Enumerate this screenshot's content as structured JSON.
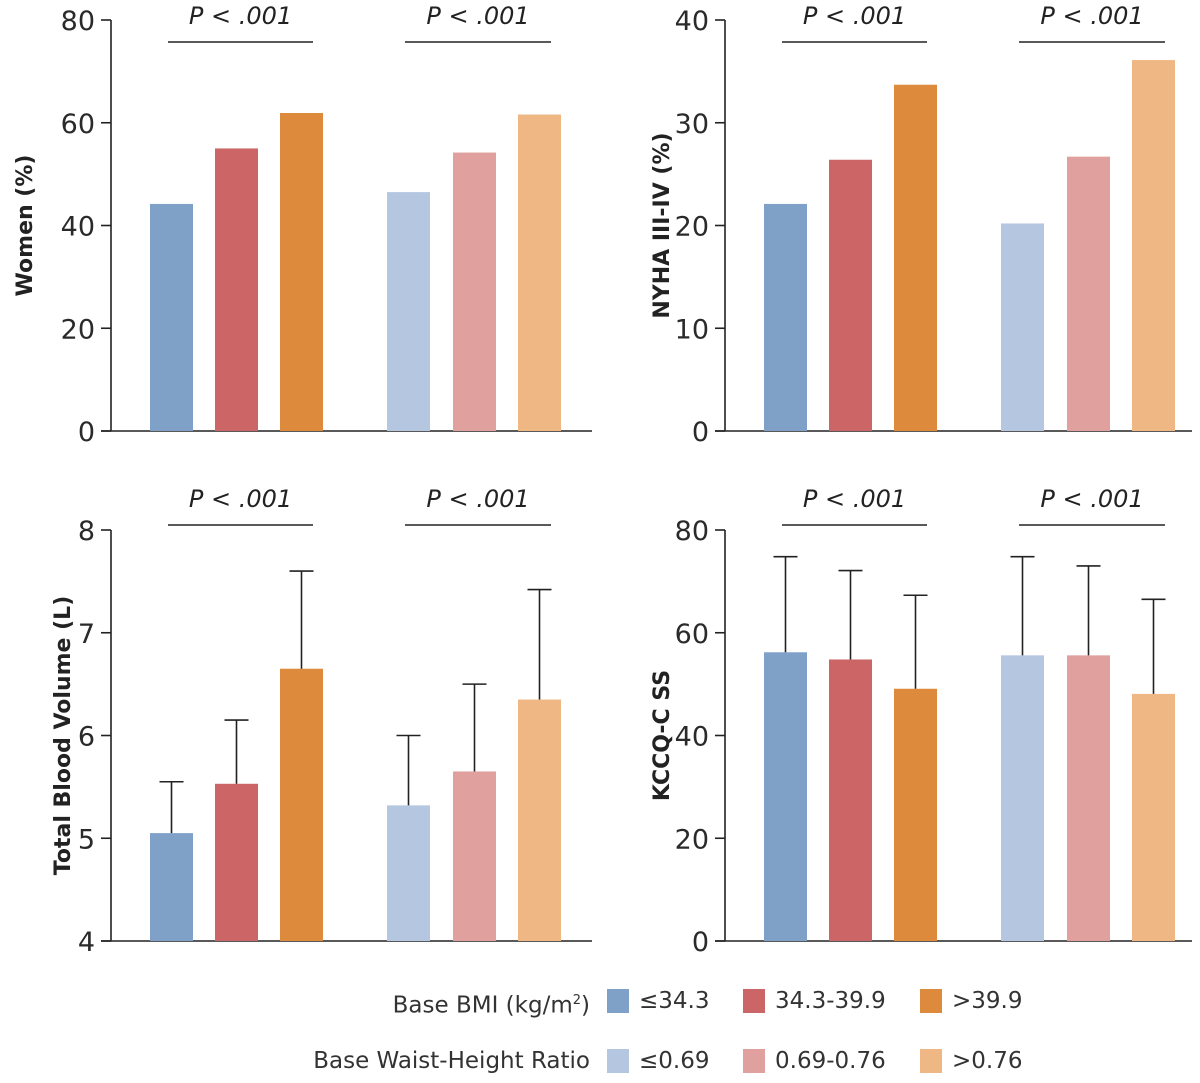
{
  "colors": {
    "bmi": [
      "#7fa1c8",
      "#cc6666",
      "#de8a3c"
    ],
    "whr": [
      "#b4c6e0",
      "#e0a19e",
      "#efb784"
    ]
  },
  "legend": {
    "rows": [
      {
        "title": "Base BMI (kg/m",
        "title_sup": "2",
        "title_end": ")",
        "items": [
          "≤34.3",
          "34.3-39.9",
          ">39.9"
        ]
      },
      {
        "title": "Base Waist-Height Ratio",
        "title_sup": "",
        "title_end": "",
        "items": [
          "≤0.69",
          "0.69-0.76",
          ">0.76"
        ]
      }
    ]
  },
  "chart_data": [
    {
      "type": "bar",
      "title": "",
      "ylabel": "Women (%)",
      "ylim": [
        0,
        80
      ],
      "yticks": [
        0,
        20,
        40,
        60,
        80
      ],
      "groups": [
        {
          "name": "Base BMI (kg/m2)",
          "categories": [
            "≤34.3",
            "34.3-39.9",
            ">39.9"
          ],
          "values": [
            44.2,
            55.0,
            61.9
          ],
          "annotation": "P < .001"
        },
        {
          "name": "Base Waist-Height Ratio",
          "categories": [
            "≤0.69",
            "0.69-0.76",
            ">0.76"
          ],
          "values": [
            46.5,
            54.2,
            61.6
          ],
          "annotation": "P < .001"
        }
      ]
    },
    {
      "type": "bar",
      "title": "",
      "ylabel": "NYHA III-IV (%)",
      "ylim": [
        0,
        40
      ],
      "yticks": [
        0,
        10,
        20,
        30,
        40
      ],
      "groups": [
        {
          "name": "Base BMI (kg/m2)",
          "categories": [
            "≤34.3",
            "34.3-39.9",
            ">39.9"
          ],
          "values": [
            22.1,
            26.4,
            33.7
          ],
          "annotation": "P < .001"
        },
        {
          "name": "Base Waist-Height Ratio",
          "categories": [
            "≤0.69",
            "0.69-0.76",
            ">0.76"
          ],
          "values": [
            20.2,
            26.7,
            36.1
          ],
          "annotation": "P < .001"
        }
      ]
    },
    {
      "type": "bar",
      "title": "",
      "ylabel": "Total Blood Volume (L)",
      "ylim": [
        4,
        8
      ],
      "yticks": [
        4,
        5,
        6,
        7,
        8
      ],
      "groups": [
        {
          "name": "Base BMI (kg/m2)",
          "categories": [
            "≤34.3",
            "34.3-39.9",
            ">39.9"
          ],
          "values": [
            5.05,
            5.53,
            6.65
          ],
          "error_upper": [
            5.55,
            6.15,
            7.6
          ],
          "annotation": "P < .001"
        },
        {
          "name": "Base Waist-Height Ratio",
          "categories": [
            "≤0.69",
            "0.69-0.76",
            ">0.76"
          ],
          "values": [
            5.32,
            5.65,
            6.35
          ],
          "error_upper": [
            6.0,
            6.5,
            7.42
          ],
          "annotation": "P < .001"
        }
      ]
    },
    {
      "type": "bar",
      "title": "",
      "ylabel": "KCCQ-C SS",
      "ylim": [
        0,
        80
      ],
      "yticks": [
        0,
        20,
        40,
        60,
        80
      ],
      "groups": [
        {
          "name": "Base BMI (kg/m2)",
          "categories": [
            "≤34.3",
            "34.3-39.9",
            ">39.9"
          ],
          "values": [
            56.2,
            54.8,
            49.1
          ],
          "error_upper": [
            74.8,
            72.1,
            67.3
          ],
          "annotation": "P < .001"
        },
        {
          "name": "Base Waist-Height Ratio",
          "categories": [
            "≤0.69",
            "0.69-0.76",
            ">0.76"
          ],
          "values": [
            55.6,
            55.6,
            48.1
          ],
          "error_upper": [
            74.8,
            73.0,
            66.5
          ],
          "annotation": "P < .001"
        }
      ]
    }
  ]
}
